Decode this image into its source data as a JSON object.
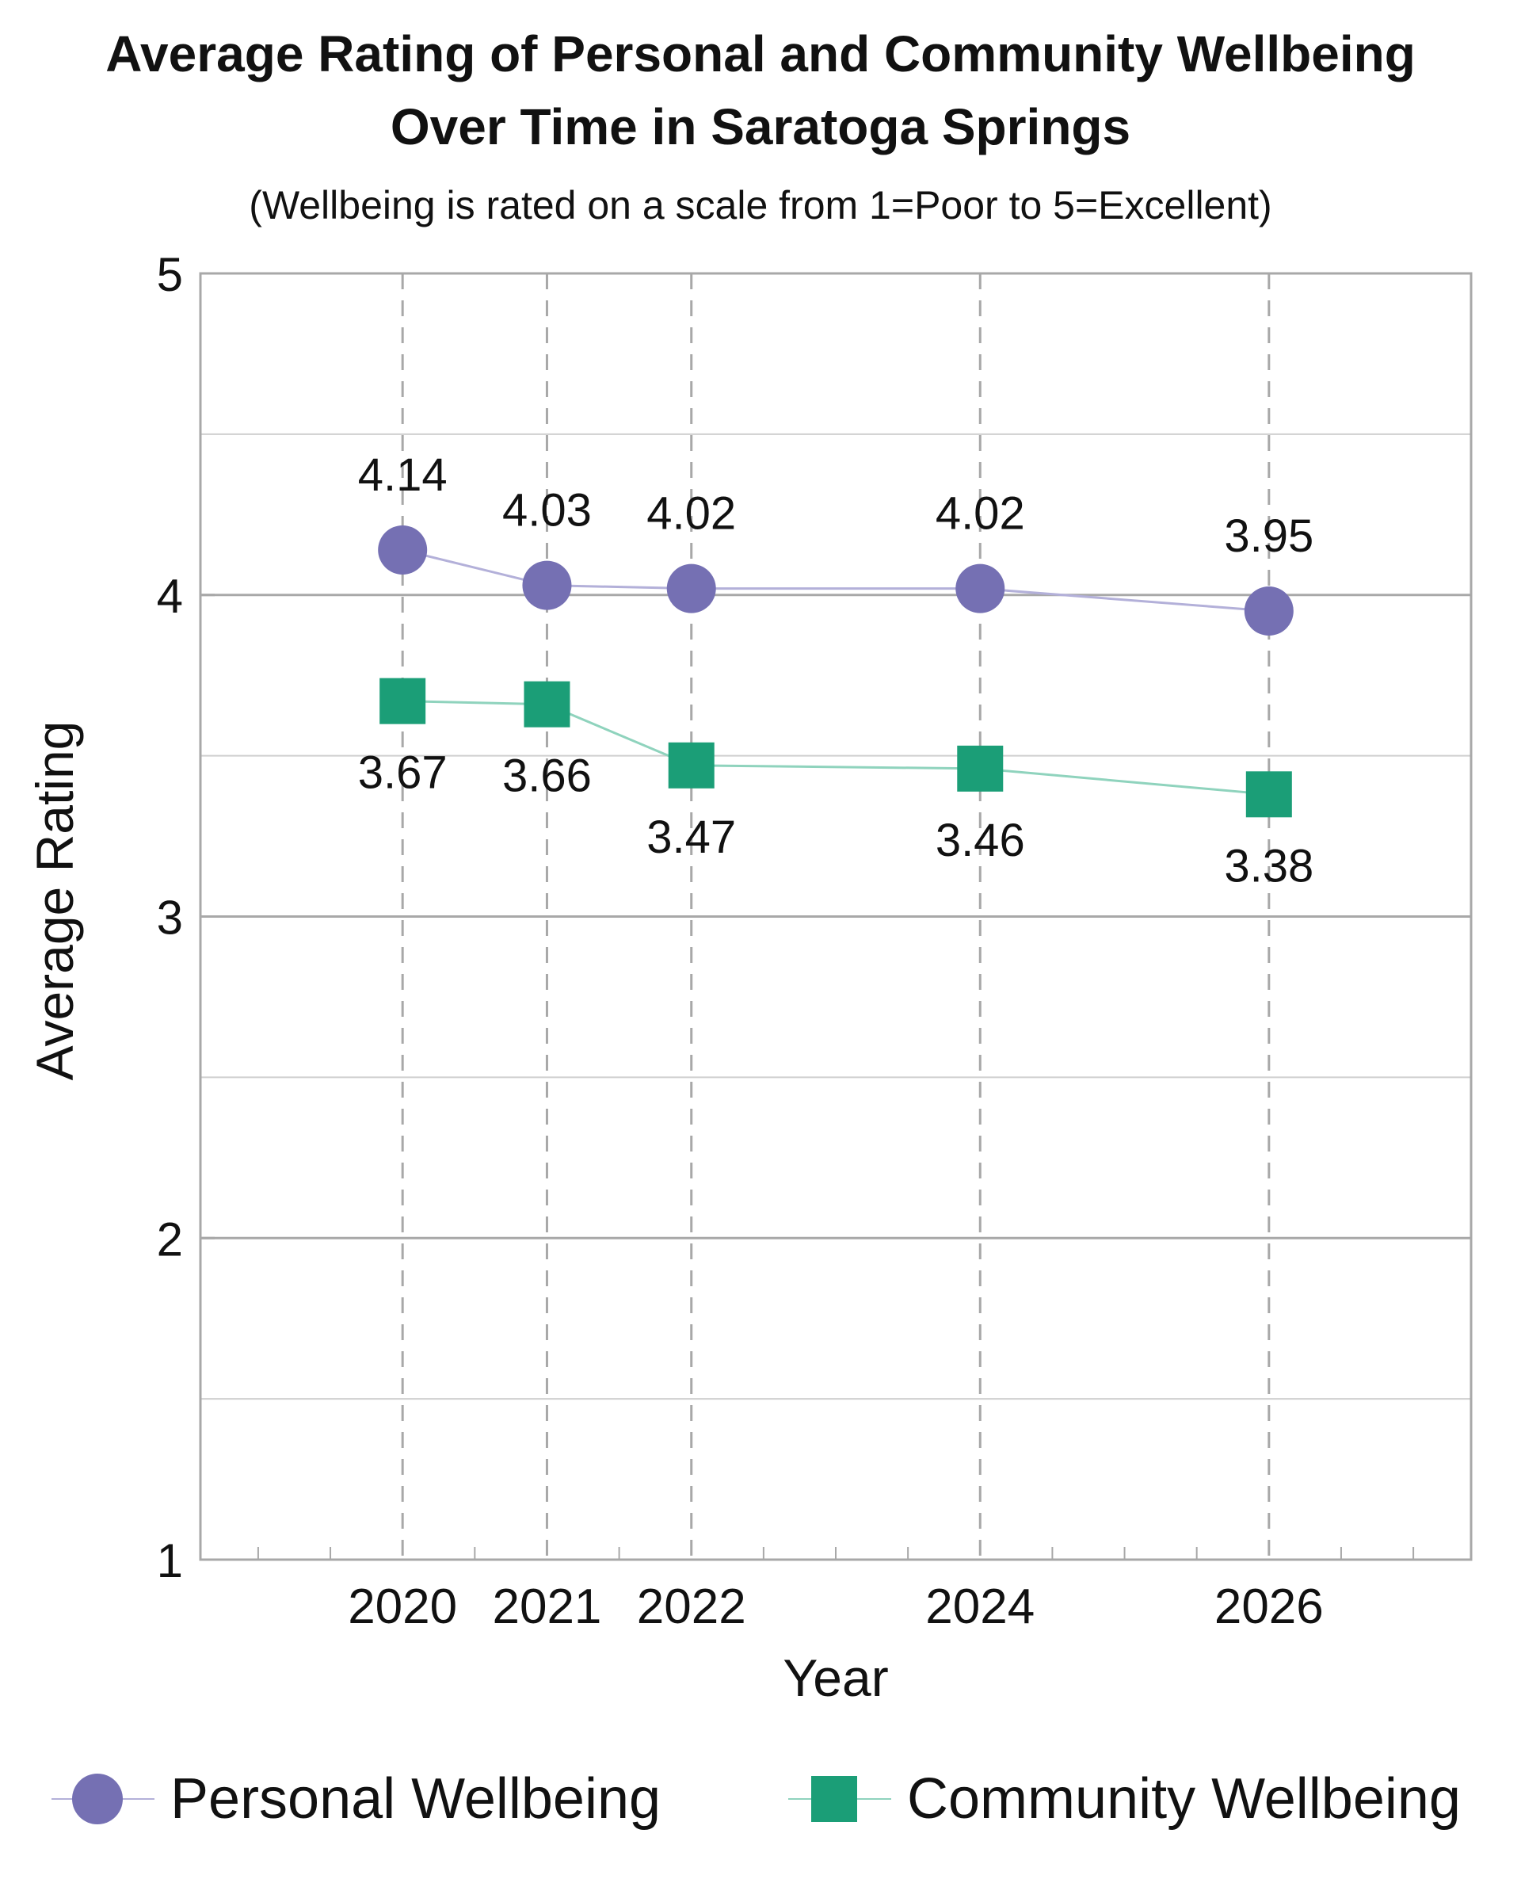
{
  "chart_data": {
    "type": "line",
    "title_line1": "Average Rating of Personal and Community Wellbeing",
    "title_line2": "Over Time in Saratoga Springs",
    "subtitle": "(Wellbeing is rated on a scale from 1=Poor to 5=Excellent)",
    "xlabel": "Year",
    "ylabel": "Average Rating",
    "x": [
      2020,
      2021,
      2022,
      2024,
      2026
    ],
    "xlim": [
      2018.6,
      2027.4
    ],
    "ylim": [
      1,
      5
    ],
    "yticks": [
      1,
      2,
      3,
      4,
      5
    ],
    "grid": true,
    "legend_position": "bottom",
    "series": [
      {
        "name": "Personal Wellbeing",
        "marker": "circle",
        "color": "#7570b3",
        "line_color": "#b3b0d9",
        "values": [
          4.14,
          4.03,
          4.02,
          4.02,
          3.95
        ],
        "labels": [
          "4.14",
          "4.03",
          "4.02",
          "4.02",
          "3.95"
        ],
        "label_position": "above"
      },
      {
        "name": "Community Wellbeing",
        "marker": "square",
        "color": "#1b9e77",
        "line_color": "#8fd3bd",
        "values": [
          3.67,
          3.66,
          3.47,
          3.46,
          3.38
        ],
        "labels": [
          "3.67",
          "3.66",
          "3.47",
          "3.46",
          "3.38"
        ],
        "label_position": "below"
      }
    ]
  }
}
